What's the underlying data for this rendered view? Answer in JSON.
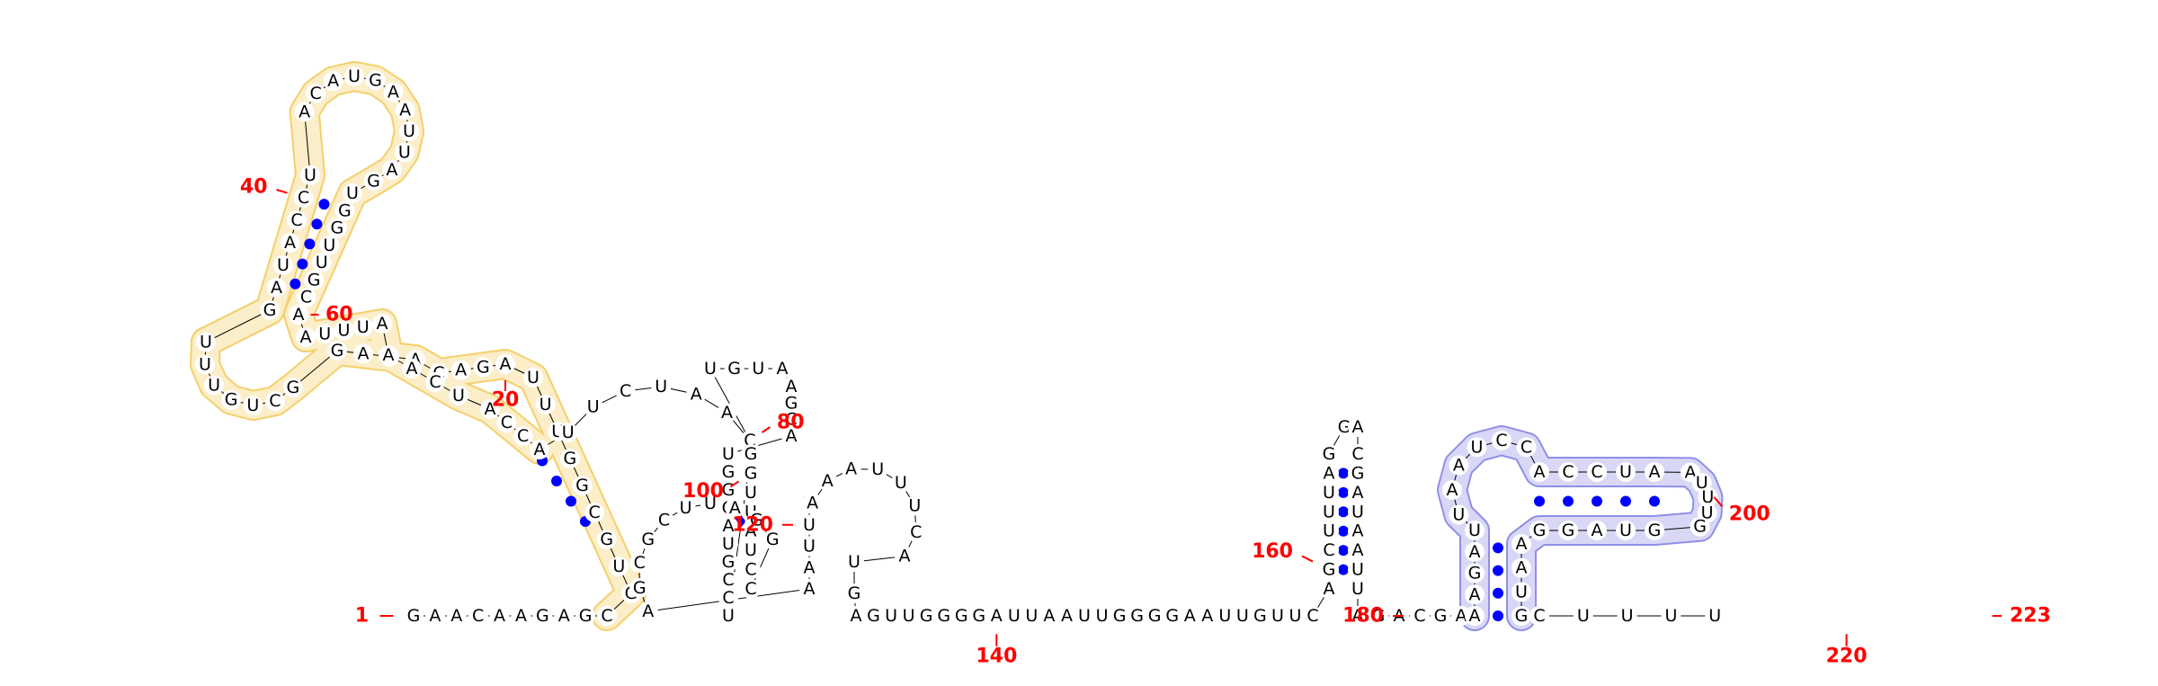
{
  "diagram": {
    "type": "rna-secondary-structure",
    "length": 223,
    "sequence": "GAACAAGAGCGUGCGGUUUAGACAUAGGCUGUUUGAUACCUACAUGAAUUAGUGGUUGCAAUUUAAACUACCAUUCUAACUGUAAGCAUGGGAUGCCUGGUUAUCCGGAUUCGCGAAAUUUAAAUUUCAUGAGUUGGGGAUUAAUUGGGGAAUUGUUCAGCUUUAGGACGAUAAUUAGACGAAAGAUUAAUCCACCUAAUUUGGUAGGAAUGCUUUU",
    "position_labels": [
      "1",
      "20",
      "40",
      "60",
      "80",
      "100",
      "120",
      "140",
      "160",
      "180",
      "200",
      "220",
      "223"
    ],
    "highlight_colors": {
      "domain_yellow_fill": "#fbeec8",
      "domain_yellow_stroke": "#f5cf6a",
      "domain_yellow_strong": "#f6c944",
      "domain_blue_fill": "#d8d8f6",
      "domain_blue_stroke": "#8f8fe8",
      "domain_blue_strong": "#8c8ce6",
      "pair_dot": "#0000ff",
      "label": "#ff0000"
    }
  }
}
